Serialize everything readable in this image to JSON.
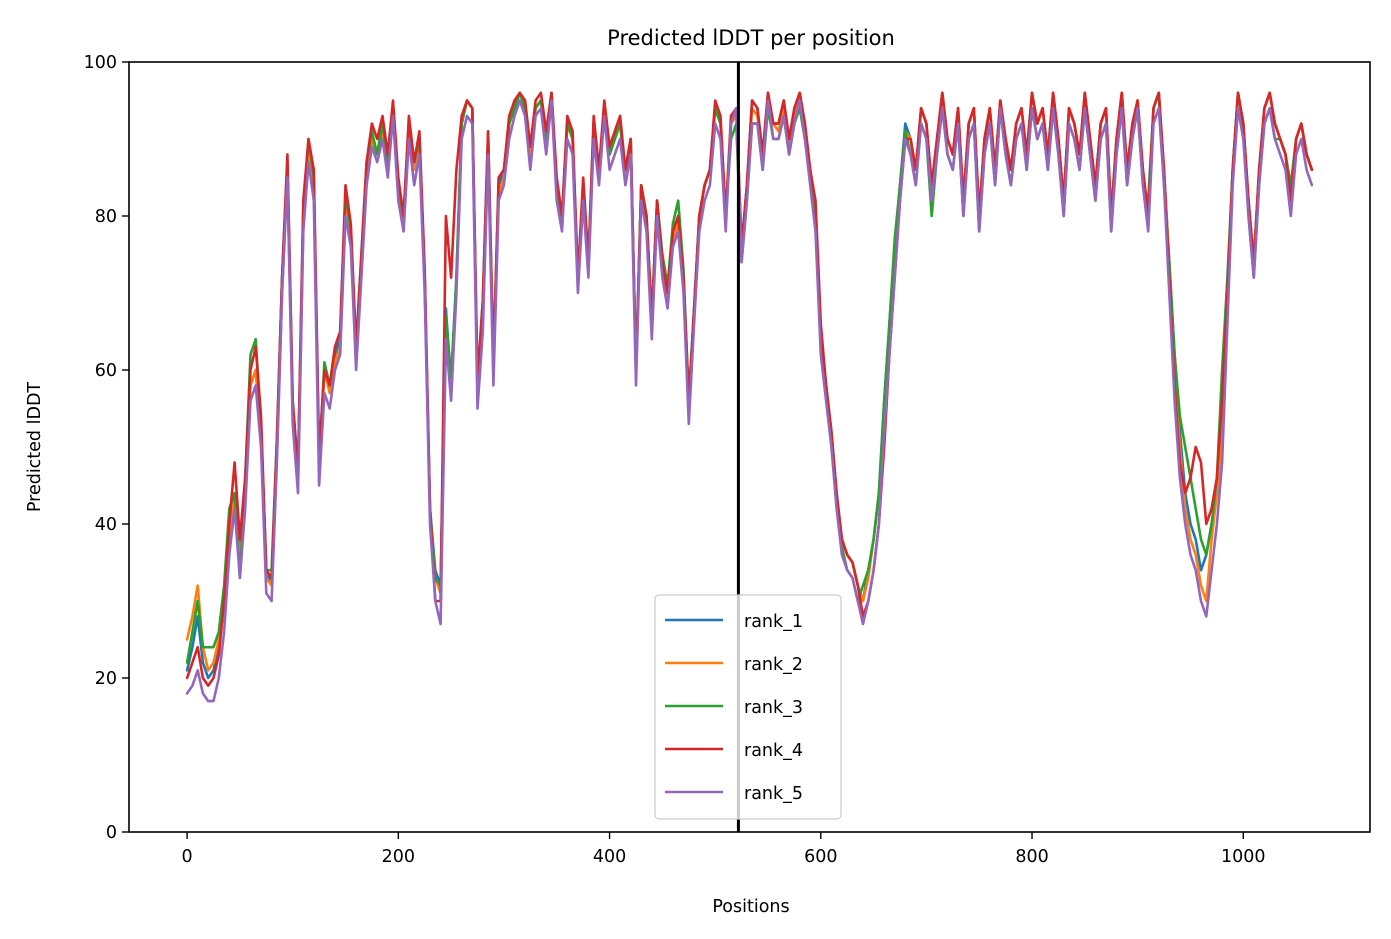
{
  "chart_data": {
    "type": "line",
    "title": "Predicted lDDT per position",
    "xlabel": "Positions",
    "ylabel": "Predicted lDDT",
    "xlim": [
      -55,
      1120
    ],
    "ylim": [
      0,
      100
    ],
    "xticks": [
      0,
      200,
      400,
      600,
      800,
      1000
    ],
    "yticks": [
      0,
      20,
      40,
      60,
      80,
      100
    ],
    "grid": false,
    "legend_position": "bottom-center",
    "vline": {
      "x": 522,
      "color": "#000000"
    },
    "x": [
      0,
      5,
      10,
      15,
      20,
      25,
      30,
      35,
      40,
      45,
      50,
      55,
      60,
      65,
      70,
      75,
      80,
      85,
      90,
      95,
      100,
      105,
      110,
      115,
      120,
      125,
      130,
      135,
      140,
      145,
      150,
      155,
      160,
      165,
      170,
      175,
      180,
      185,
      190,
      195,
      200,
      205,
      210,
      215,
      220,
      225,
      230,
      235,
      240,
      245,
      250,
      255,
      260,
      265,
      270,
      275,
      280,
      285,
      290,
      295,
      300,
      305,
      310,
      315,
      320,
      325,
      330,
      335,
      340,
      345,
      350,
      355,
      360,
      365,
      370,
      375,
      380,
      385,
      390,
      395,
      400,
      405,
      410,
      415,
      420,
      425,
      430,
      435,
      440,
      445,
      450,
      455,
      460,
      465,
      470,
      475,
      480,
      485,
      490,
      495,
      500,
      505,
      510,
      515,
      520,
      525,
      530,
      535,
      540,
      545,
      550,
      555,
      560,
      565,
      570,
      575,
      580,
      585,
      590,
      595,
      600,
      605,
      610,
      615,
      620,
      625,
      630,
      635,
      640,
      645,
      650,
      655,
      660,
      665,
      670,
      675,
      680,
      685,
      690,
      695,
      700,
      705,
      710,
      715,
      720,
      725,
      730,
      735,
      740,
      745,
      750,
      755,
      760,
      765,
      770,
      775,
      780,
      785,
      790,
      795,
      800,
      805,
      810,
      815,
      820,
      825,
      830,
      835,
      840,
      845,
      850,
      855,
      860,
      865,
      870,
      875,
      880,
      885,
      890,
      895,
      900,
      905,
      910,
      915,
      920,
      925,
      930,
      935,
      940,
      945,
      950,
      955,
      960,
      965,
      970,
      975,
      980,
      985,
      990,
      995,
      1000,
      1005,
      1010,
      1015,
      1020,
      1025,
      1030,
      1035,
      1040,
      1045,
      1050,
      1055,
      1060,
      1065
    ],
    "series": [
      {
        "name": "rank_1",
        "color": "#1f77b4",
        "values": [
          21,
          24,
          28,
          22,
          20,
          21,
          24,
          30,
          38,
          44,
          36,
          45,
          58,
          60,
          52,
          34,
          32,
          50,
          72,
          86,
          55,
          46,
          80,
          89,
          84,
          48,
          60,
          58,
          62,
          64,
          82,
          78,
          62,
          74,
          86,
          90,
          88,
          92,
          86,
          94,
          84,
          80,
          92,
          86,
          90,
          72,
          42,
          34,
          32,
          68,
          58,
          72,
          92,
          95,
          94,
          58,
          68,
          90,
          60,
          84,
          86,
          92,
          94,
          96,
          94,
          88,
          94,
          95,
          90,
          96,
          84,
          80,
          92,
          90,
          72,
          84,
          74,
          92,
          86,
          94,
          88,
          90,
          92,
          86,
          90,
          60,
          84,
          80,
          66,
          82,
          74,
          70,
          78,
          80,
          72,
          56,
          68,
          80,
          84,
          86,
          94,
          92,
          80,
          92,
          94,
          76,
          84,
          95,
          94,
          88,
          96,
          92,
          92,
          95,
          90,
          94,
          96,
          92,
          86,
          80,
          64,
          58,
          52,
          44,
          38,
          36,
          35,
          32,
          30,
          34,
          38,
          44,
          56,
          66,
          76,
          84,
          92,
          90,
          86,
          94,
          92,
          84,
          90,
          96,
          90,
          88,
          94,
          82,
          92,
          94,
          80,
          90,
          94,
          86,
          95,
          90,
          86,
          92,
          94,
          88,
          96,
          92,
          94,
          88,
          96,
          90,
          82,
          94,
          92,
          88,
          96,
          90,
          84,
          92,
          94,
          80,
          90,
          96,
          86,
          92,
          95,
          86,
          80,
          94,
          96,
          86,
          74,
          62,
          52,
          44,
          40,
          38,
          34,
          36,
          40,
          44,
          52,
          70,
          86,
          96,
          92,
          82,
          74,
          86,
          94,
          96,
          92,
          90,
          88,
          82,
          90,
          92,
          88,
          86
        ]
      },
      {
        "name": "rank_2",
        "color": "#ff7f0e",
        "values": [
          25,
          28,
          32,
          24,
          21,
          22,
          25,
          30,
          37,
          44,
          35,
          44,
          58,
          60,
          51,
          33,
          32,
          49,
          70,
          85,
          54,
          45,
          79,
          88,
          84,
          47,
          60,
          57,
          61,
          63,
          81,
          77,
          62,
          74,
          85,
          90,
          88,
          91,
          86,
          94,
          83,
          79,
          91,
          86,
          90,
          71,
          42,
          33,
          31,
          66,
          58,
          71,
          92,
          95,
          94,
          57,
          67,
          90,
          60,
          83,
          85,
          92,
          94,
          96,
          94,
          88,
          94,
          95,
          89,
          96,
          83,
          79,
          92,
          90,
          71,
          83,
          73,
          92,
          85,
          94,
          88,
          90,
          92,
          85,
          90,
          59,
          83,
          79,
          66,
          82,
          73,
          69,
          77,
          79,
          72,
          55,
          67,
          80,
          84,
          86,
          94,
          92,
          80,
          92,
          93,
          75,
          84,
          94,
          93,
          87,
          95,
          92,
          91,
          94,
          89,
          93,
          95,
          91,
          86,
          79,
          64,
          58,
          51,
          43,
          38,
          36,
          35,
          32,
          30,
          33,
          38,
          44,
          54,
          64,
          74,
          84,
          91,
          90,
          86,
          94,
          92,
          84,
          90,
          96,
          90,
          88,
          94,
          82,
          92,
          94,
          80,
          90,
          94,
          86,
          95,
          90,
          86,
          92,
          94,
          88,
          96,
          92,
          94,
          88,
          96,
          90,
          82,
          94,
          92,
          88,
          96,
          90,
          84,
          92,
          94,
          80,
          90,
          96,
          86,
          92,
          95,
          86,
          80,
          94,
          96,
          86,
          74,
          60,
          50,
          42,
          38,
          36,
          32,
          30,
          38,
          44,
          52,
          70,
          86,
          96,
          92,
          82,
          74,
          86,
          94,
          96,
          92,
          90,
          88,
          82,
          90,
          92,
          88,
          86
        ]
      },
      {
        "name": "rank_3",
        "color": "#2ca02c",
        "values": [
          22,
          26,
          30,
          24,
          24,
          24,
          26,
          32,
          42,
          44,
          33,
          46,
          62,
          64,
          53,
          34,
          34,
          51,
          72,
          87,
          56,
          47,
          81,
          90,
          85,
          48,
          61,
          58,
          63,
          65,
          83,
          78,
          63,
          75,
          87,
          91,
          88,
          92,
          87,
          94,
          84,
          80,
          92,
          87,
          90,
          72,
          42,
          33,
          32,
          67,
          59,
          72,
          92,
          95,
          94,
          58,
          69,
          91,
          61,
          85,
          86,
          92,
          94,
          96,
          94,
          89,
          94,
          95,
          90,
          96,
          84,
          80,
          92,
          90,
          72,
          84,
          74,
          92,
          86,
          94,
          88,
          90,
          92,
          86,
          90,
          60,
          84,
          80,
          67,
          82,
          75,
          71,
          79,
          82,
          73,
          56,
          68,
          80,
          84,
          86,
          94,
          92,
          80,
          90,
          92,
          74,
          82,
          92,
          92,
          86,
          94,
          90,
          90,
          93,
          88,
          92,
          94,
          90,
          86,
          80,
          64,
          58,
          52,
          44,
          37,
          34,
          33,
          30,
          32,
          34,
          38,
          44,
          56,
          66,
          77,
          84,
          91,
          88,
          84,
          92,
          90,
          80,
          88,
          94,
          88,
          86,
          92,
          80,
          90,
          92,
          78,
          88,
          92,
          84,
          94,
          88,
          84,
          90,
          92,
          86,
          94,
          90,
          92,
          86,
          94,
          88,
          80,
          92,
          90,
          86,
          94,
          88,
          82,
          90,
          92,
          78,
          88,
          94,
          84,
          90,
          94,
          84,
          82,
          94,
          96,
          84,
          74,
          62,
          54,
          50,
          46,
          42,
          38,
          36,
          40,
          46,
          60,
          72,
          86,
          96,
          92,
          80,
          72,
          84,
          92,
          94,
          90,
          90,
          88,
          84,
          90,
          92,
          88,
          86
        ]
      },
      {
        "name": "rank_4",
        "color": "#d62728",
        "values": [
          20,
          22,
          24,
          20,
          19,
          20,
          23,
          30,
          40,
          48,
          38,
          46,
          60,
          63,
          54,
          34,
          33,
          51,
          72,
          88,
          56,
          47,
          82,
          90,
          86,
          49,
          60,
          58,
          63,
          65,
          84,
          79,
          63,
          75,
          87,
          92,
          90,
          93,
          88,
          95,
          85,
          80,
          93,
          87,
          91,
          73,
          42,
          30,
          30,
          80,
          72,
          86,
          93,
          95,
          94,
          59,
          69,
          91,
          61,
          85,
          86,
          93,
          95,
          96,
          95,
          89,
          95,
          96,
          91,
          96,
          85,
          80,
          93,
          91,
          72,
          85,
          74,
          93,
          86,
          95,
          89,
          91,
          93,
          86,
          90,
          60,
          84,
          80,
          67,
          82,
          74,
          70,
          78,
          80,
          72,
          56,
          68,
          80,
          84,
          86,
          95,
          93,
          80,
          93,
          94,
          76,
          84,
          95,
          94,
          88,
          96,
          92,
          92,
          95,
          90,
          94,
          96,
          92,
          86,
          82,
          66,
          58,
          52,
          44,
          38,
          36,
          35,
          32,
          28,
          30,
          34,
          40,
          50,
          62,
          72,
          82,
          90,
          90,
          86,
          94,
          92,
          84,
          90,
          96,
          90,
          88,
          94,
          82,
          92,
          94,
          80,
          90,
          94,
          86,
          95,
          90,
          86,
          92,
          94,
          88,
          96,
          92,
          94,
          88,
          96,
          90,
          82,
          94,
          92,
          88,
          96,
          90,
          84,
          92,
          94,
          80,
          90,
          96,
          86,
          92,
          95,
          86,
          80,
          94,
          96,
          86,
          72,
          58,
          48,
          44,
          46,
          50,
          48,
          40,
          42,
          46,
          56,
          70,
          86,
          96,
          92,
          82,
          74,
          86,
          94,
          96,
          92,
          90,
          88,
          82,
          90,
          92,
          88,
          86
        ]
      },
      {
        "name": "rank_5",
        "color": "#9467bd",
        "values": [
          18,
          19,
          21,
          18,
          17,
          17,
          20,
          26,
          36,
          42,
          33,
          42,
          56,
          58,
          50,
          31,
          30,
          48,
          70,
          85,
          53,
          44,
          78,
          87,
          82,
          45,
          57,
          55,
          60,
          62,
          80,
          76,
          60,
          72,
          84,
          89,
          87,
          90,
          85,
          93,
          82,
          78,
          90,
          84,
          88,
          70,
          40,
          30,
          27,
          64,
          56,
          70,
          90,
          93,
          92,
          55,
          65,
          88,
          58,
          82,
          84,
          90,
          93,
          95,
          93,
          86,
          93,
          94,
          88,
          95,
          82,
          78,
          90,
          88,
          70,
          82,
          72,
          90,
          84,
          93,
          86,
          88,
          90,
          84,
          88,
          58,
          82,
          78,
          64,
          80,
          72,
          68,
          76,
          78,
          70,
          53,
          66,
          78,
          82,
          84,
          92,
          90,
          78,
          92,
          94,
          74,
          82,
          92,
          92,
          86,
          95,
          90,
          90,
          93,
          88,
          92,
          95,
          90,
          84,
          78,
          62,
          56,
          50,
          42,
          36,
          34,
          33,
          30,
          27,
          30,
          34,
          40,
          52,
          62,
          72,
          82,
          90,
          88,
          84,
          92,
          90,
          82,
          88,
          94,
          88,
          86,
          92,
          80,
          90,
          92,
          78,
          88,
          92,
          84,
          94,
          88,
          84,
          90,
          92,
          86,
          94,
          90,
          92,
          86,
          94,
          88,
          80,
          92,
          90,
          86,
          94,
          88,
          82,
          90,
          92,
          78,
          88,
          94,
          84,
          90,
          94,
          84,
          78,
          92,
          94,
          84,
          70,
          56,
          46,
          40,
          36,
          34,
          30,
          28,
          34,
          40,
          48,
          66,
          84,
          94,
          90,
          80,
          72,
          84,
          92,
          94,
          90,
          88,
          86,
          80,
          88,
          90,
          86,
          84
        ]
      }
    ]
  }
}
